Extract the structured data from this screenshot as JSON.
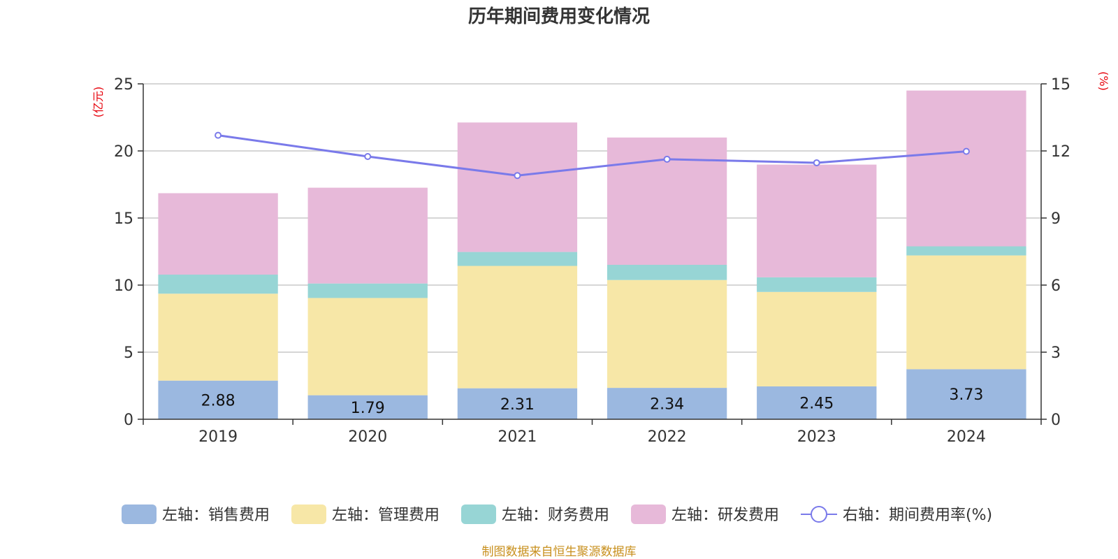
{
  "chart_data": {
    "type": "bar",
    "stacked": true,
    "title": "历年期间费用变化情况",
    "categories": [
      "2019",
      "2020",
      "2021",
      "2022",
      "2023",
      "2024"
    ],
    "y_left": {
      "unit": "(亿元)",
      "ylim": [
        0,
        25
      ],
      "ticks": [
        0,
        5,
        10,
        15,
        20,
        25
      ]
    },
    "y_right": {
      "unit": "(%)",
      "ylim": [
        0,
        15
      ],
      "ticks": [
        0,
        3,
        6,
        9,
        12,
        15
      ]
    },
    "series": [
      {
        "name": "左轴：销售费用",
        "kind": "bar",
        "axis": "left",
        "color": "#9bb8e0",
        "values": [
          2.88,
          1.79,
          2.31,
          2.34,
          2.45,
          3.73
        ],
        "labels": [
          "2.88",
          "1.79",
          "2.31",
          "2.34",
          "2.45",
          "3.73"
        ]
      },
      {
        "name": "左轴：管理费用",
        "kind": "bar",
        "axis": "left",
        "color": "#f7e7a7",
        "values": [
          6.48,
          7.25,
          9.12,
          8.04,
          7.04,
          8.48
        ]
      },
      {
        "name": "左轴：财务费用",
        "kind": "bar",
        "axis": "left",
        "color": "#97d5d5",
        "values": [
          1.42,
          1.08,
          1.04,
          1.13,
          1.09,
          0.68
        ]
      },
      {
        "name": "左轴：研发费用",
        "kind": "bar",
        "axis": "left",
        "color": "#e7b9d9",
        "values": [
          6.07,
          7.14,
          9.65,
          9.49,
          8.4,
          11.61
        ]
      },
      {
        "name": "右轴：期间费用率(%)",
        "kind": "line",
        "axis": "right",
        "color": "#7a7aea",
        "values": [
          12.7,
          11.75,
          10.9,
          11.63,
          11.47,
          11.98
        ]
      }
    ],
    "grid": true,
    "legend": "bottom",
    "source": "制图数据来自恒生聚源数据库"
  }
}
